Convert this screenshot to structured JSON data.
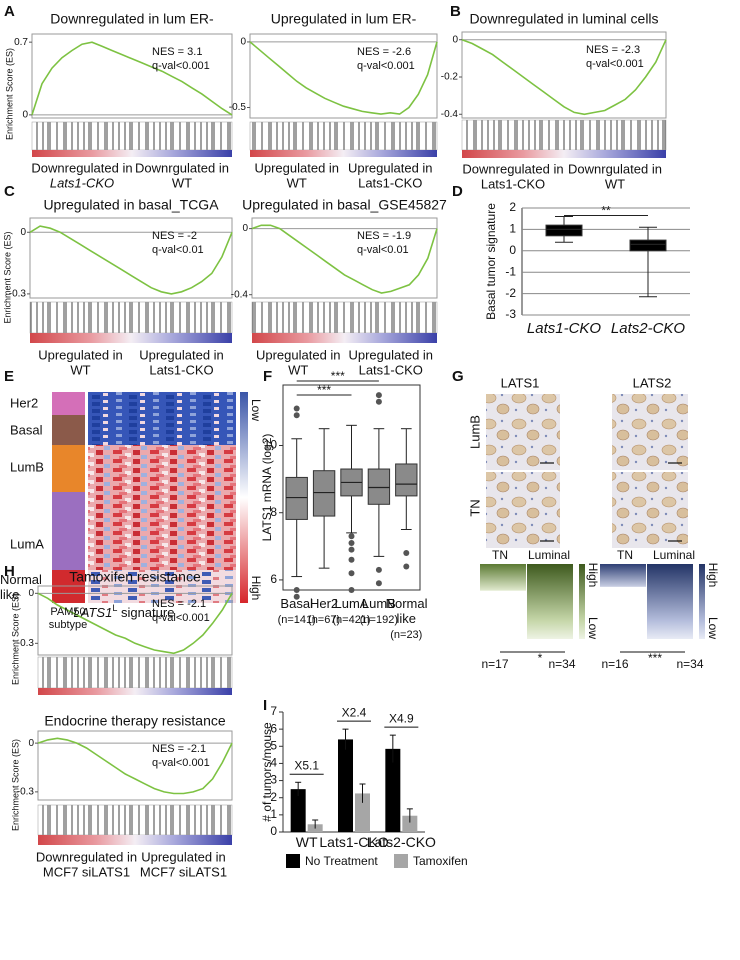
{
  "panel_labels": [
    "A",
    "B",
    "C",
    "D",
    "E",
    "F",
    "G",
    "H",
    "I"
  ],
  "chart_data": [
    {
      "type": "line",
      "title": "Downregulated in lum ER-",
      "nes": "NES = 3.1",
      "qval": "q-val<0.001",
      "ylabel": "Enrichment Score (ES)",
      "values": [
        0,
        0.3,
        0.45,
        0.55,
        0.62,
        0.68,
        0.7,
        0.66,
        0.62,
        0.58,
        0.54,
        0.5,
        0.46,
        0.42,
        0.37,
        0.32,
        0.26,
        0.2,
        0.13,
        0.06,
        0
      ],
      "ylim": [
        -0.03,
        0.74
      ],
      "yticks": [
        0,
        0.7
      ],
      "color": "#7dc242",
      "left_label": [
        "Downregulated in",
        "Lats1-CKO"
      ],
      "right_label": [
        "Downrgulated in",
        "WT"
      ]
    },
    {
      "type": "line",
      "title": "Upregulated in lum ER-",
      "nes": "NES = -2.6",
      "qval": "q-val<0.001",
      "values": [
        0,
        -0.06,
        -0.12,
        -0.18,
        -0.24,
        -0.3,
        -0.35,
        -0.39,
        -0.43,
        -0.46,
        -0.49,
        -0.51,
        -0.53,
        -0.54,
        -0.55,
        -0.54,
        -0.55,
        -0.5,
        -0.4,
        -0.25,
        0
      ],
      "ylim": [
        -0.58,
        0.03
      ],
      "yticks": [
        0,
        -0.5
      ],
      "color": "#7dc242",
      "left_label": [
        "Upregulated in",
        "WT"
      ],
      "right_label": [
        "Upregulated in",
        "Lats1-CKO"
      ]
    },
    {
      "type": "line",
      "title": "Downregulated in luminal cells",
      "nes": "NES = -2.3",
      "qval": "q-val<0.001",
      "values": [
        0,
        -0.02,
        -0.05,
        -0.08,
        -0.12,
        -0.16,
        -0.2,
        -0.24,
        -0.28,
        -0.32,
        -0.36,
        -0.39,
        -0.4,
        -0.39,
        -0.38,
        -0.35,
        -0.32,
        -0.27,
        -0.2,
        -0.12,
        0
      ],
      "ylim": [
        -0.42,
        0.02
      ],
      "yticks": [
        0,
        -0.2,
        -0.4
      ],
      "color": "#7dc242",
      "left_label": [
        "Downregulated in",
        "Lats1-CKO"
      ],
      "right_label": [
        "Downrgulated in",
        "WT"
      ]
    },
    {
      "type": "line",
      "title": "Upregulated in basal_TCGA",
      "nes": "NES = -2",
      "qval": "q-val<0.01",
      "ylabel": "Enrichment Score (ES)",
      "values": [
        0,
        0.03,
        0.02,
        0,
        -0.03,
        -0.06,
        -0.09,
        -0.12,
        -0.15,
        -0.18,
        -0.21,
        -0.24,
        -0.27,
        -0.29,
        -0.3,
        -0.29,
        -0.27,
        -0.24,
        -0.2,
        -0.12,
        0
      ],
      "ylim": [
        -0.32,
        0.05
      ],
      "yticks": [
        0,
        -0.3
      ],
      "color": "#7dc242",
      "left_label": [
        "Upregulated in",
        "WT"
      ],
      "right_label": [
        "Upregulated in",
        "Lats1-CKO"
      ]
    },
    {
      "type": "line",
      "title": "Upregulated in basal_GSE45827",
      "nes": "NES = -1.9",
      "qval": "q-val<0.01",
      "values": [
        0,
        0.02,
        0.02,
        0,
        -0.04,
        -0.08,
        -0.12,
        -0.16,
        -0.2,
        -0.24,
        -0.28,
        -0.31,
        -0.34,
        -0.37,
        -0.39,
        -0.38,
        -0.36,
        -0.34,
        -0.28,
        -0.18,
        0
      ],
      "ylim": [
        -0.42,
        0.04
      ],
      "yticks": [
        0,
        -0.4
      ],
      "color": "#7dc242",
      "left_label": [
        "Upregulated in",
        "WT"
      ],
      "right_label": [
        "Upregulated in",
        "Lats1-CKO"
      ]
    },
    {
      "type": "line",
      "title": "Tamoxifen resistance",
      "nes": "NES = -2.1",
      "qval": "q-val<0.001",
      "ylabel": "Enrichment Score (ES)",
      "values": [
        0,
        -0.03,
        -0.07,
        -0.1,
        -0.13,
        -0.16,
        -0.19,
        -0.22,
        -0.25,
        -0.27,
        -0.3,
        -0.32,
        -0.34,
        -0.35,
        -0.36,
        -0.34,
        -0.3,
        -0.25,
        -0.18,
        -0.1,
        0
      ],
      "ylim": [
        -0.37,
        0.02
      ],
      "yticks": [
        0,
        -0.3
      ],
      "color": "#7dc242"
    },
    {
      "type": "line",
      "title": "Endocrine therapy resistance",
      "nes": "NES = -2.1",
      "qval": "q-val<0.001",
      "ylabel": "Enrichment Score (ES)",
      "values": [
        0,
        0.02,
        0.03,
        0.02,
        0,
        -0.03,
        -0.07,
        -0.11,
        -0.15,
        -0.19,
        -0.22,
        -0.25,
        -0.28,
        -0.3,
        -0.31,
        -0.31,
        -0.3,
        -0.28,
        -0.22,
        -0.12,
        0
      ],
      "ylim": [
        -0.35,
        0.05
      ],
      "yticks": [
        0,
        -0.3
      ],
      "color": "#7dc242",
      "left_label": [
        "Downregulated in",
        "MCF7 siLATS1"
      ],
      "right_label": [
        "Upregulated in",
        "MCF7 siLATS1"
      ]
    },
    {
      "type": "box",
      "ylabel": "Basal tumor signature",
      "categories": [
        "Lats1-CKO",
        "Lats2-CKO"
      ],
      "boxes": [
        {
          "low": 0.4,
          "q1": 0.7,
          "median": 1.0,
          "q3": 1.2,
          "high": 1.6
        },
        {
          "low": -2.15,
          "q1": 0,
          "median": 0.3,
          "q3": 0.5,
          "high": 1.1
        }
      ],
      "ylim": [
        -3,
        2
      ],
      "yticks": [
        2,
        1,
        0,
        -1,
        -2,
        -3
      ],
      "grid": true,
      "color": "#000000",
      "significance": [
        "**"
      ]
    },
    {
      "type": "box",
      "ylabel": "LATS1 mRNA (log2)",
      "categories": [
        "Basal",
        "Her2",
        "LumA",
        "LumB",
        "Normal like"
      ],
      "counts": [
        "(n=141)",
        "(n=67)",
        "(n=421)",
        "(n=192)",
        "(n=23)"
      ],
      "boxes": [
        {
          "low": 6.1,
          "q1": 7.8,
          "median": 8.45,
          "q3": 9.05,
          "high": 10.2,
          "outliers": [
            5.5,
            5.7,
            10.9,
            11.1
          ]
        },
        {
          "low": 6.35,
          "q1": 7.9,
          "median": 8.6,
          "q3": 9.25,
          "high": 10.5
        },
        {
          "low": 7.4,
          "q1": 8.5,
          "median": 8.9,
          "q3": 9.3,
          "high": 10.6,
          "outliers": [
            5.7,
            6.2,
            6.6,
            6.9,
            7.1,
            7.3
          ]
        },
        {
          "low": 6.7,
          "q1": 8.25,
          "median": 8.75,
          "q3": 9.3,
          "high": 10.5,
          "outliers": [
            5.9,
            6.3,
            11.3,
            11.5
          ]
        },
        {
          "low": 7.5,
          "q1": 8.5,
          "median": 8.85,
          "q3": 9.45,
          "high": 10.5,
          "outliers": [
            6.4,
            6.8
          ]
        }
      ],
      "ylim": [
        5.7,
        11.8
      ],
      "yticks": [
        6,
        8,
        10
      ],
      "grid": false,
      "color": "#8a8a8a",
      "significance": [
        "***",
        "***"
      ]
    },
    {
      "type": "bar",
      "ylabel": "# of tumors/mouse",
      "categories": [
        "WT",
        "Lats1-CKO",
        "Lats2-CKO"
      ],
      "series": [
        {
          "name": "No Treatment",
          "color": "#000000",
          "values": [
            2.5,
            5.4,
            4.85
          ],
          "errors": [
            0.4,
            0.6,
            0.8
          ]
        },
        {
          "name": "Tamoxifen",
          "color": "#a6a6a6",
          "values": [
            0.45,
            2.25,
            0.95
          ],
          "errors": [
            0.25,
            0.55,
            0.4
          ]
        }
      ],
      "ylim": [
        0,
        7
      ],
      "yticks": [
        0,
        1,
        2,
        3,
        4,
        5,
        6,
        7
      ],
      "annotations": [
        "X5.1",
        "X2.4",
        "X4.9"
      ]
    }
  ],
  "heatmap": {
    "subtypes": [
      "Her2",
      "Basal",
      "LumB",
      "LumA",
      "Normal like"
    ],
    "subtype_label": "PAM50 subtype",
    "signature_label": [
      "LATS1",
      "L",
      " signature"
    ],
    "scale": [
      "Low",
      "High"
    ]
  },
  "ihc": {
    "columns": [
      "LATS1",
      "LATS2"
    ],
    "rows": [
      "LumB",
      "TN"
    ],
    "groups": [
      "TN",
      "Luminal"
    ],
    "scale": [
      "High",
      "Low"
    ],
    "tests": [
      {
        "n": [
          "n=17",
          "n=34"
        ],
        "p": "*"
      },
      {
        "n": [
          "n=16",
          "n=34"
        ],
        "p": "***"
      }
    ]
  }
}
